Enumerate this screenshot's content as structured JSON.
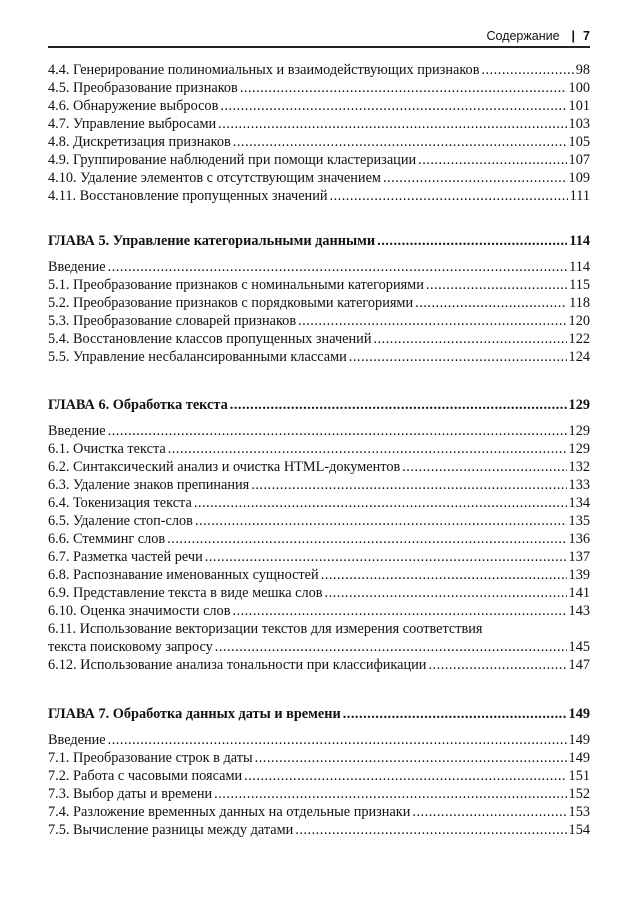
{
  "header": {
    "title": "Содержание",
    "page": "7"
  },
  "sections": [
    {
      "chapter": null,
      "entries": [
        {
          "title": "4.4. Генерирование полиномиальных и взаимодействующих признаков",
          "page": "98"
        },
        {
          "title": "4.5. Преобразование признаков",
          "page": "100"
        },
        {
          "title": "4.6. Обнаружение выбросов",
          "page": "101"
        },
        {
          "title": "4.7. Управление выбросами",
          "page": "103"
        },
        {
          "title": "4.8. Дискретизация признаков",
          "page": "105"
        },
        {
          "title": "4.9. Группирование наблюдений при помощи кластеризации",
          "page": "107"
        },
        {
          "title": "4.10. Удаление элементов с отсутствующим значением",
          "page": "109"
        },
        {
          "title": "4.11. Восстановление пропущенных значений",
          "page": "111"
        }
      ]
    },
    {
      "chapter": {
        "title": "ГЛАВА 5. Управление категориальными данными",
        "page": "114"
      },
      "entries": [
        {
          "title": "Введение",
          "page": "114"
        },
        {
          "title": "5.1. Преобразование признаков с номинальными категориями",
          "page": "115"
        },
        {
          "title": "5.2. Преобразование признаков с порядковыми категориями",
          "page": "118"
        },
        {
          "title": "5.3. Преобразование словарей признаков",
          "page": "120"
        },
        {
          "title": "5.4. Восстановление классов пропущенных значений",
          "page": "122"
        },
        {
          "title": "5.5. Управление несбалансированными классами",
          "page": "124"
        }
      ]
    },
    {
      "chapter": {
        "title": "ГЛАВА 6. Обработка текста",
        "page": "129"
      },
      "entries": [
        {
          "title": "Введение",
          "page": "129"
        },
        {
          "title": "6.1. Очистка текста",
          "page": "129"
        },
        {
          "title": "6.2. Синтаксический анализ и очистка HTML-документов",
          "page": "132"
        },
        {
          "title": "6.3. Удаление знаков препинания",
          "page": "133"
        },
        {
          "title": "6.4. Токенизация текста",
          "page": "134"
        },
        {
          "title": "6.5. Удаление стоп-слов",
          "page": "135"
        },
        {
          "title": "6.6. Стемминг слов",
          "page": "136"
        },
        {
          "title": "6.7. Разметка частей речи",
          "page": "137"
        },
        {
          "title": "6.8. Распознавание именованных сущностей",
          "page": "139"
        },
        {
          "title": "6.9. Представление текста в виде мешка слов",
          "page": "141"
        },
        {
          "title": "6.10. Оценка значимости слов",
          "page": "143"
        },
        {
          "title": "6.11. Использование векторизации текстов для измерения соответствия",
          "continuation": "текста поисковому запросу",
          "page": "145"
        },
        {
          "title": "6.12. Использование анализа тональности при классификации",
          "page": "147"
        }
      ]
    },
    {
      "chapter": {
        "title": "ГЛАВА 7. Обработка данных даты и времени",
        "page": "149"
      },
      "entries": [
        {
          "title": "Введение",
          "page": "149"
        },
        {
          "title": "7.1. Преобразование строк в даты",
          "page": "149"
        },
        {
          "title": "7.2. Работа с часовыми поясами",
          "page": "151"
        },
        {
          "title": "7.3. Выбор даты и времени",
          "page": "152"
        },
        {
          "title": "7.4. Разложение временных данных на отдельные признаки",
          "page": "153"
        },
        {
          "title": "7.5. Вычисление разницы между датами",
          "page": "154"
        }
      ]
    }
  ]
}
